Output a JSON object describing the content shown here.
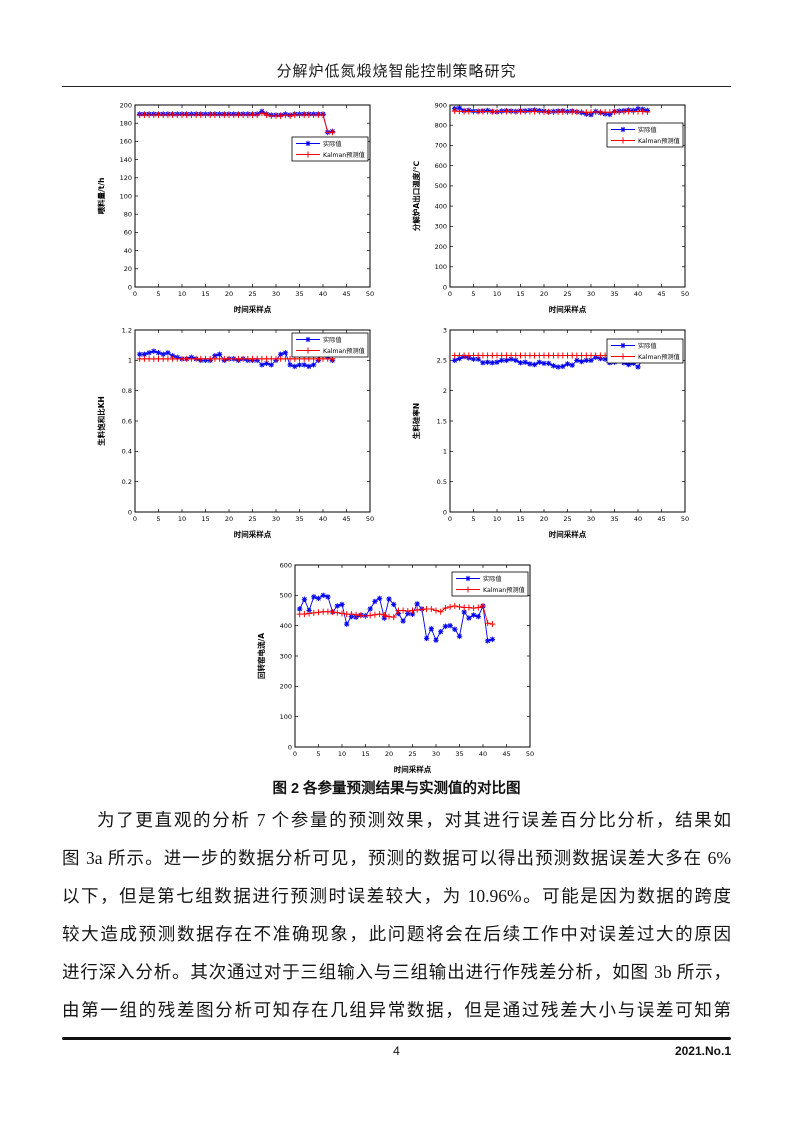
{
  "page": {
    "header_title": "分解炉低氮煅烧智能控制策略研究",
    "figure_caption": "图 2 各参量预测结果与实测值的对比图",
    "footer": {
      "page_number": "4",
      "issue": "2021.No.1"
    }
  },
  "body": {
    "lines": [
      "为了更直观的分析 7 个参量的预测效果，对其进行误差百分比分析，结果如",
      "图 3a 所示。进一步的数据分析可见，预测的数据可以得出预测数据误差大多在 6%",
      "以下，但是第七组数据进行预测时误差较大，为 10.96%。可能是因为数据的跨度",
      "较大造成预测数据存在不准确现象，此问题将会在后续工作中对误差过大的原因",
      "进行深入分析。其次通过对于三组输入与三组输出进行作残差分析，如图 3b 所示，",
      "由第一组的残差图分析可知存在几组异常数据，但是通过残差大小与误差可知第"
    ]
  },
  "colors": {
    "actual": "#0000EE",
    "kalman": "#FF0000"
  },
  "chart_data": [
    {
      "type": "line",
      "title": "",
      "xlabel": "时间采样点",
      "ylabel": "喂料量/t/h",
      "xlim": [
        0,
        50
      ],
      "ylim": [
        0,
        200
      ],
      "xticks": [
        0,
        5,
        10,
        15,
        20,
        25,
        30,
        35,
        40,
        45,
        50
      ],
      "yticks": [
        0,
        20,
        40,
        60,
        80,
        100,
        120,
        140,
        160,
        180,
        200
      ],
      "legend_position": "right-upper",
      "legend_offset_y": 32,
      "series": [
        {
          "name": "实际值",
          "color": "#0000EE",
          "marker": "star",
          "values": [
            190,
            190,
            190,
            190,
            190,
            190,
            190,
            190,
            190,
            190,
            190,
            190,
            190,
            190,
            190,
            190,
            190,
            190,
            190,
            190,
            190,
            190,
            190,
            190,
            190,
            190,
            193,
            190,
            189,
            189,
            189,
            190,
            189,
            190,
            190,
            190,
            190,
            190,
            190,
            190,
            170,
            171
          ]
        },
        {
          "name": "Kalman预测值",
          "color": "#FF0000",
          "marker": "plus",
          "values": [
            189,
            189,
            189,
            189,
            189,
            189,
            189,
            189,
            189,
            189,
            189,
            189,
            189,
            189,
            189,
            189,
            189,
            189,
            189,
            189,
            189,
            189,
            189,
            189,
            189,
            189,
            191,
            189,
            188,
            188,
            188,
            189,
            188,
            189,
            189,
            189,
            189,
            189,
            189,
            189,
            170,
            170
          ]
        }
      ]
    },
    {
      "type": "line",
      "title": "",
      "xlabel": "时间采样点",
      "ylabel": "分解炉A出口温度/℃",
      "xlim": [
        0,
        50
      ],
      "ylim": [
        0,
        900
      ],
      "xticks": [
        0,
        5,
        10,
        15,
        20,
        25,
        30,
        35,
        40,
        45,
        50
      ],
      "yticks": [
        0,
        100,
        200,
        300,
        400,
        500,
        600,
        700,
        800,
        900
      ],
      "legend_position": "right-upper",
      "legend_offset_y": 18,
      "series": [
        {
          "name": "实际值",
          "color": "#0000EE",
          "marker": "star",
          "values": [
            882,
            885,
            872,
            874,
            870,
            869,
            871,
            873,
            868,
            866,
            870,
            872,
            870,
            868,
            872,
            871,
            873,
            875,
            872,
            870,
            866,
            868,
            870,
            871,
            868,
            870,
            866,
            862,
            855,
            852,
            868,
            862,
            856,
            853,
            868,
            870,
            872,
            875,
            873,
            881,
            879,
            873
          ]
        },
        {
          "name": "Kalman预测值",
          "color": "#FF0000",
          "marker": "plus",
          "values": [
            870,
            869,
            868,
            868,
            868,
            868,
            868,
            868,
            867,
            867,
            868,
            868,
            868,
            867,
            868,
            868,
            868,
            868,
            868,
            866,
            866,
            866,
            866,
            866,
            866,
            866,
            866,
            865,
            864,
            864,
            866,
            865,
            864,
            864,
            866,
            866,
            867,
            868,
            868,
            868,
            868,
            866
          ]
        }
      ]
    },
    {
      "type": "line",
      "title": "",
      "xlabel": "时间采样点",
      "ylabel": "生料饱和比KH",
      "xlim": [
        0,
        50
      ],
      "ylim": [
        0,
        1.2
      ],
      "xticks": [
        0,
        5,
        10,
        15,
        20,
        25,
        30,
        35,
        40,
        45,
        50
      ],
      "yticks": [
        0,
        0.2,
        0.4,
        0.6,
        0.8,
        1,
        1.2
      ],
      "legend_position": "right-top",
      "legend_offset_y": 3,
      "series": [
        {
          "name": "实际值",
          "color": "#0000EE",
          "marker": "star",
          "values": [
            1.04,
            1.04,
            1.05,
            1.06,
            1.05,
            1.04,
            1.05,
            1.03,
            1.02,
            1.01,
            1.01,
            1.02,
            1.01,
            1.0,
            1.0,
            1.0,
            1.03,
            1.04,
            1.0,
            1.01,
            1.01,
            1.0,
            1.01,
            1.0,
            1.0,
            1.0,
            0.97,
            0.98,
            0.97,
            1.0,
            1.04,
            1.05,
            0.97,
            0.96,
            0.97,
            0.97,
            0.96,
            0.97,
            1.0,
            1.07,
            1.02,
            1.0
          ]
        },
        {
          "name": "Kalman预测值",
          "color": "#FF0000",
          "marker": "plus",
          "values": [
            1.01,
            1.01,
            1.01,
            1.01,
            1.01,
            1.01,
            1.01,
            1.01,
            1.01,
            1.01,
            1.01,
            1.01,
            1.01,
            1.01,
            1.01,
            1.01,
            1.01,
            1.01,
            1.01,
            1.01,
            1.01,
            1.01,
            1.01,
            1.01,
            1.01,
            1.01,
            1.01,
            1.01,
            1.01,
            1.01,
            1.01,
            1.01,
            1.01,
            1.01,
            1.01,
            1.01,
            1.01,
            1.01,
            1.01,
            1.01,
            1.01,
            1.01
          ]
        }
      ]
    },
    {
      "type": "line",
      "title": "",
      "xlabel": "时间采样点",
      "ylabel": "生料硅率N",
      "xlim": [
        0,
        50
      ],
      "ylim": [
        0,
        3
      ],
      "xticks": [
        0,
        5,
        10,
        15,
        20,
        25,
        30,
        35,
        40,
        45,
        50
      ],
      "yticks": [
        0,
        0.5,
        1,
        1.5,
        2,
        2.5,
        3
      ],
      "legend_position": "right-upper",
      "legend_offset_y": 9,
      "series": [
        {
          "name": "实际值",
          "color": "#0000EE",
          "marker": "star",
          "values": [
            2.5,
            2.53,
            2.56,
            2.54,
            2.52,
            2.52,
            2.46,
            2.47,
            2.46,
            2.47,
            2.5,
            2.5,
            2.52,
            2.5,
            2.46,
            2.47,
            2.44,
            2.43,
            2.47,
            2.45,
            2.45,
            2.41,
            2.39,
            2.4,
            2.44,
            2.42,
            2.5,
            2.48,
            2.5,
            2.5,
            2.55,
            2.53,
            2.52,
            2.46,
            2.47,
            2.5,
            2.46,
            2.43,
            2.45,
            2.39,
            2.52,
            2.55
          ]
        },
        {
          "name": "Kalman预测值",
          "color": "#FF0000",
          "marker": "plus",
          "values": [
            2.58,
            2.58,
            2.58,
            2.58,
            2.58,
            2.58,
            2.58,
            2.58,
            2.58,
            2.58,
            2.58,
            2.58,
            2.58,
            2.58,
            2.58,
            2.58,
            2.58,
            2.58,
            2.58,
            2.58,
            2.58,
            2.58,
            2.58,
            2.58,
            2.58,
            2.58,
            2.58,
            2.58,
            2.58,
            2.58,
            2.58,
            2.58,
            2.58,
            2.58,
            2.58,
            2.58,
            2.58,
            2.58,
            2.58,
            2.58,
            2.58,
            2.58
          ]
        }
      ]
    },
    {
      "type": "line",
      "title": "",
      "xlabel": "时间采样点",
      "ylabel": "回转窑电流/A",
      "xlim": [
        0,
        50
      ],
      "ylim": [
        0,
        600
      ],
      "xticks": [
        0,
        5,
        10,
        15,
        20,
        25,
        30,
        35,
        40,
        45,
        50
      ],
      "yticks": [
        0,
        100,
        200,
        300,
        400,
        500,
        600
      ],
      "legend_position": "right-upper",
      "legend_offset_y": 7,
      "series": [
        {
          "name": "实际值",
          "color": "#0000EE",
          "marker": "star",
          "values": [
            455,
            487,
            450,
            495,
            490,
            500,
            495,
            445,
            465,
            470,
            405,
            430,
            428,
            435,
            433,
            455,
            480,
            490,
            425,
            488,
            470,
            440,
            415,
            440,
            438,
            472,
            455,
            358,
            390,
            352,
            380,
            398,
            400,
            388,
            365,
            445,
            425,
            435,
            430,
            465,
            350,
            355
          ]
        },
        {
          "name": "Kalman预测值",
          "color": "#FF0000",
          "marker": "plus",
          "values": [
            438,
            438,
            440,
            442,
            444,
            446,
            446,
            445,
            443,
            440,
            438,
            438,
            436,
            434,
            432,
            434,
            436,
            438,
            435,
            430,
            428,
            450,
            450,
            448,
            450,
            452,
            453,
            455,
            455,
            450,
            446,
            458,
            462,
            465,
            462,
            460,
            460,
            458,
            460,
            465,
            408,
            405
          ]
        }
      ]
    }
  ]
}
